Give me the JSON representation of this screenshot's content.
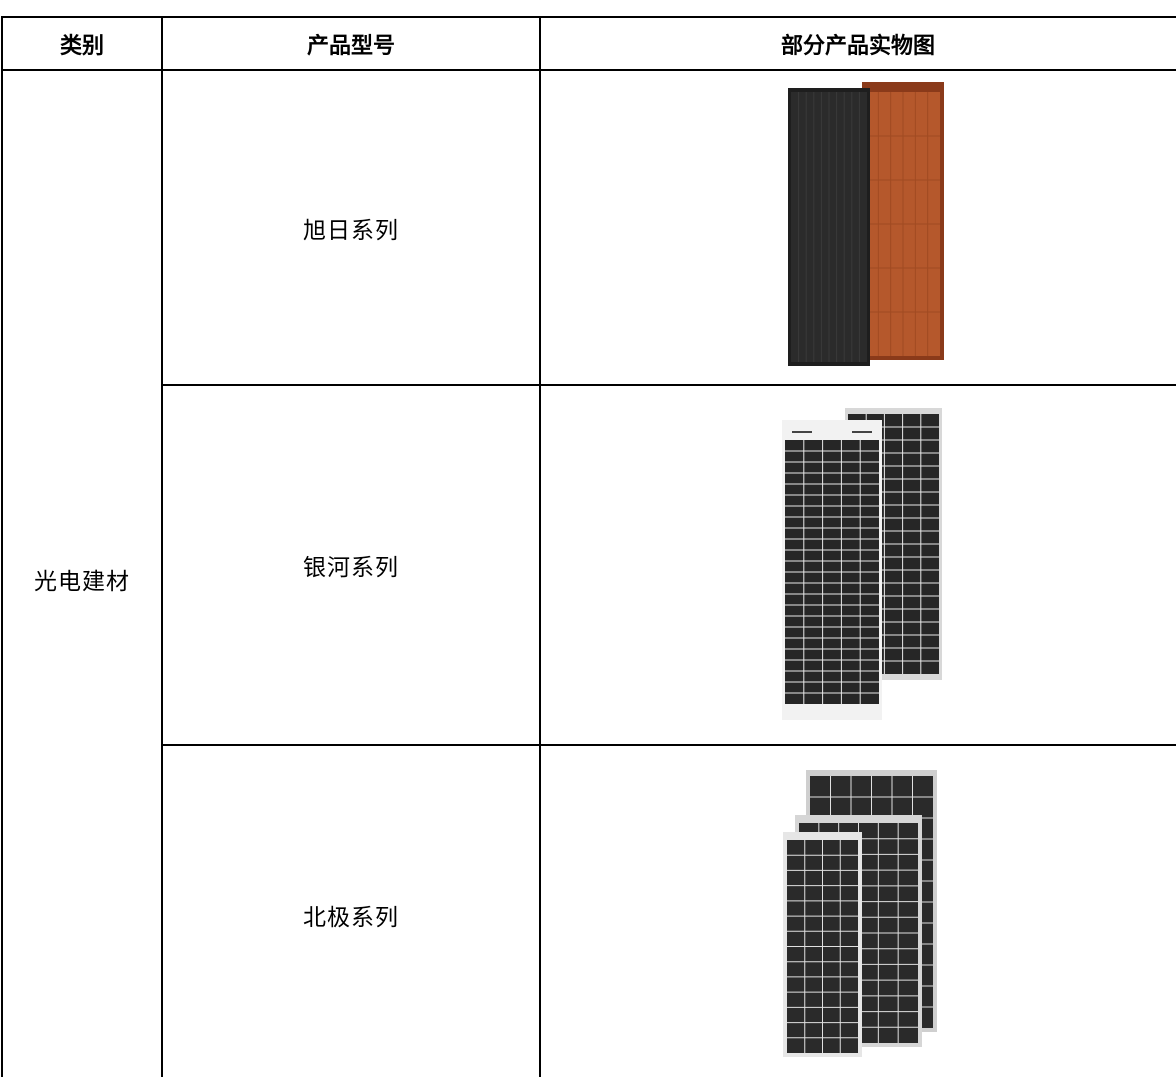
{
  "table": {
    "header": [
      "类别",
      "产品型号",
      "部分产品实物图"
    ],
    "category": "光电建材",
    "rows": [
      "旭日系列",
      "银河系列",
      "北极系列"
    ]
  }
}
